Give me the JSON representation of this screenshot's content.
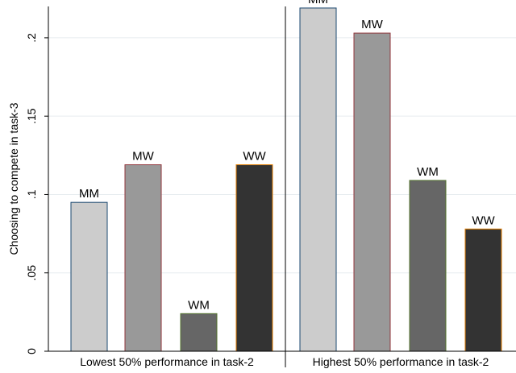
{
  "chart_data": {
    "type": "bar",
    "ylabel": "Choosing to compete in task-3",
    "ylim": [
      0,
      0.22
    ],
    "yticks": [
      {
        "value": 0,
        "label": "0"
      },
      {
        "value": 0.05,
        "label": ".05"
      },
      {
        "value": 0.1,
        "label": ".1"
      },
      {
        "value": 0.15,
        "label": ".15"
      },
      {
        "value": 0.2,
        "label": ".2"
      }
    ],
    "grid": true,
    "panels": [
      {
        "label": "Lowest 50% performance in task-2",
        "bars": [
          {
            "label": "MM",
            "value": 0.095,
            "fill": "#cccccc",
            "stroke": "#1a476f"
          },
          {
            "label": "MW",
            "value": 0.119,
            "fill": "#999999",
            "stroke": "#90353b"
          },
          {
            "label": "WM",
            "value": 0.024,
            "fill": "#666666",
            "stroke": "#55752f"
          },
          {
            "label": "WW",
            "value": 0.119,
            "fill": "#333333",
            "stroke": "#e37e00"
          }
        ]
      },
      {
        "label": "Highest 50% performance in task-2",
        "bars": [
          {
            "label": "MM",
            "value": 0.219,
            "fill": "#cccccc",
            "stroke": "#1a476f"
          },
          {
            "label": "MW",
            "value": 0.203,
            "fill": "#999999",
            "stroke": "#90353b"
          },
          {
            "label": "WM",
            "value": 0.109,
            "fill": "#666666",
            "stroke": "#55752f"
          },
          {
            "label": "WW",
            "value": 0.078,
            "fill": "#333333",
            "stroke": "#e37e00"
          }
        ]
      }
    ]
  }
}
